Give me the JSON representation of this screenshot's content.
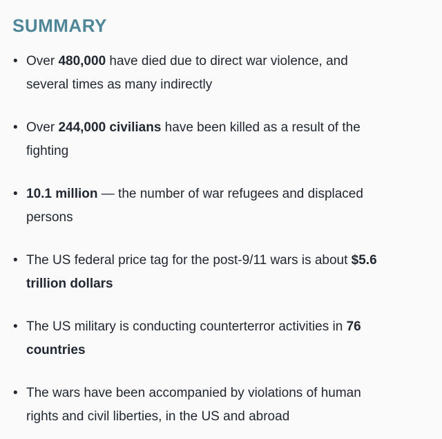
{
  "page": {
    "background_color": "#fafafa",
    "text_color": "#222831",
    "accent_color": "#4f8798"
  },
  "heading": {
    "text": "SUMMARY"
  },
  "summary": {
    "items": [
      {
        "segments": [
          {
            "text": "Over ",
            "bold": false
          },
          {
            "text": "480,000",
            "bold": true
          },
          {
            "text": " have died due to direct war violence, and\nseveral times as many indirectly",
            "bold": false
          }
        ]
      },
      {
        "segments": [
          {
            "text": "Over ",
            "bold": false
          },
          {
            "text": "244,000 civilians",
            "bold": true
          },
          {
            "text": " have been killed as a result of the\nfighting",
            "bold": false
          }
        ]
      },
      {
        "segments": [
          {
            "text": "10.1 million",
            "bold": true
          },
          {
            "text": " — the number of war refugees and displaced\npersons",
            "bold": false
          }
        ]
      },
      {
        "segments": [
          {
            "text": "The US federal price tag for the post-9/11 wars is about ",
            "bold": false
          },
          {
            "text": "$5.6\ntrillion dollars",
            "bold": true
          }
        ]
      },
      {
        "segments": [
          {
            "text": "The US military is conducting counterterror activities in ",
            "bold": false
          },
          {
            "text": "76\ncountries",
            "bold": true
          }
        ]
      },
      {
        "segments": [
          {
            "text": "The wars have been accompanied by violations of human\nrights and civil liberties, in the US and abroad",
            "bold": false
          }
        ]
      }
    ]
  }
}
